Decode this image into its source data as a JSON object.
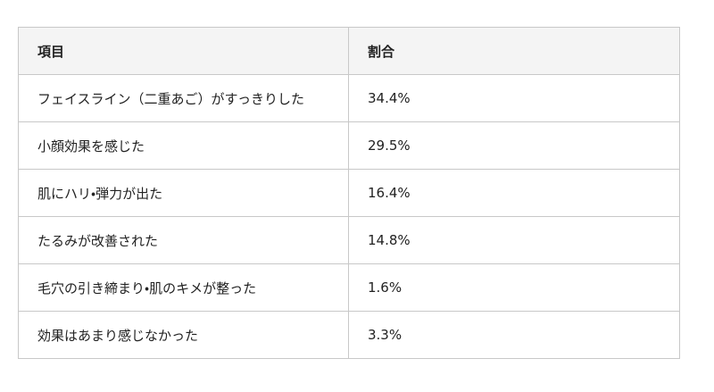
{
  "table": {
    "header": [
      "項目",
      "割合"
    ],
    "rows": [
      [
        "フェイスライン（二重あご）がすっきりした",
        "34.4%"
      ],
      [
        "小顔効果を感じた",
        "29.5%"
      ],
      [
        "肌にハリ・弾力が出た",
        "16.4%"
      ],
      [
        "たるみが改善された",
        "14.8%"
      ],
      [
        "毛穴の引き締まり・肌のキメが整った",
        "1.6%"
      ],
      [
        "効果はあまり感じなかった",
        "3.3%"
      ]
    ]
  }
}
